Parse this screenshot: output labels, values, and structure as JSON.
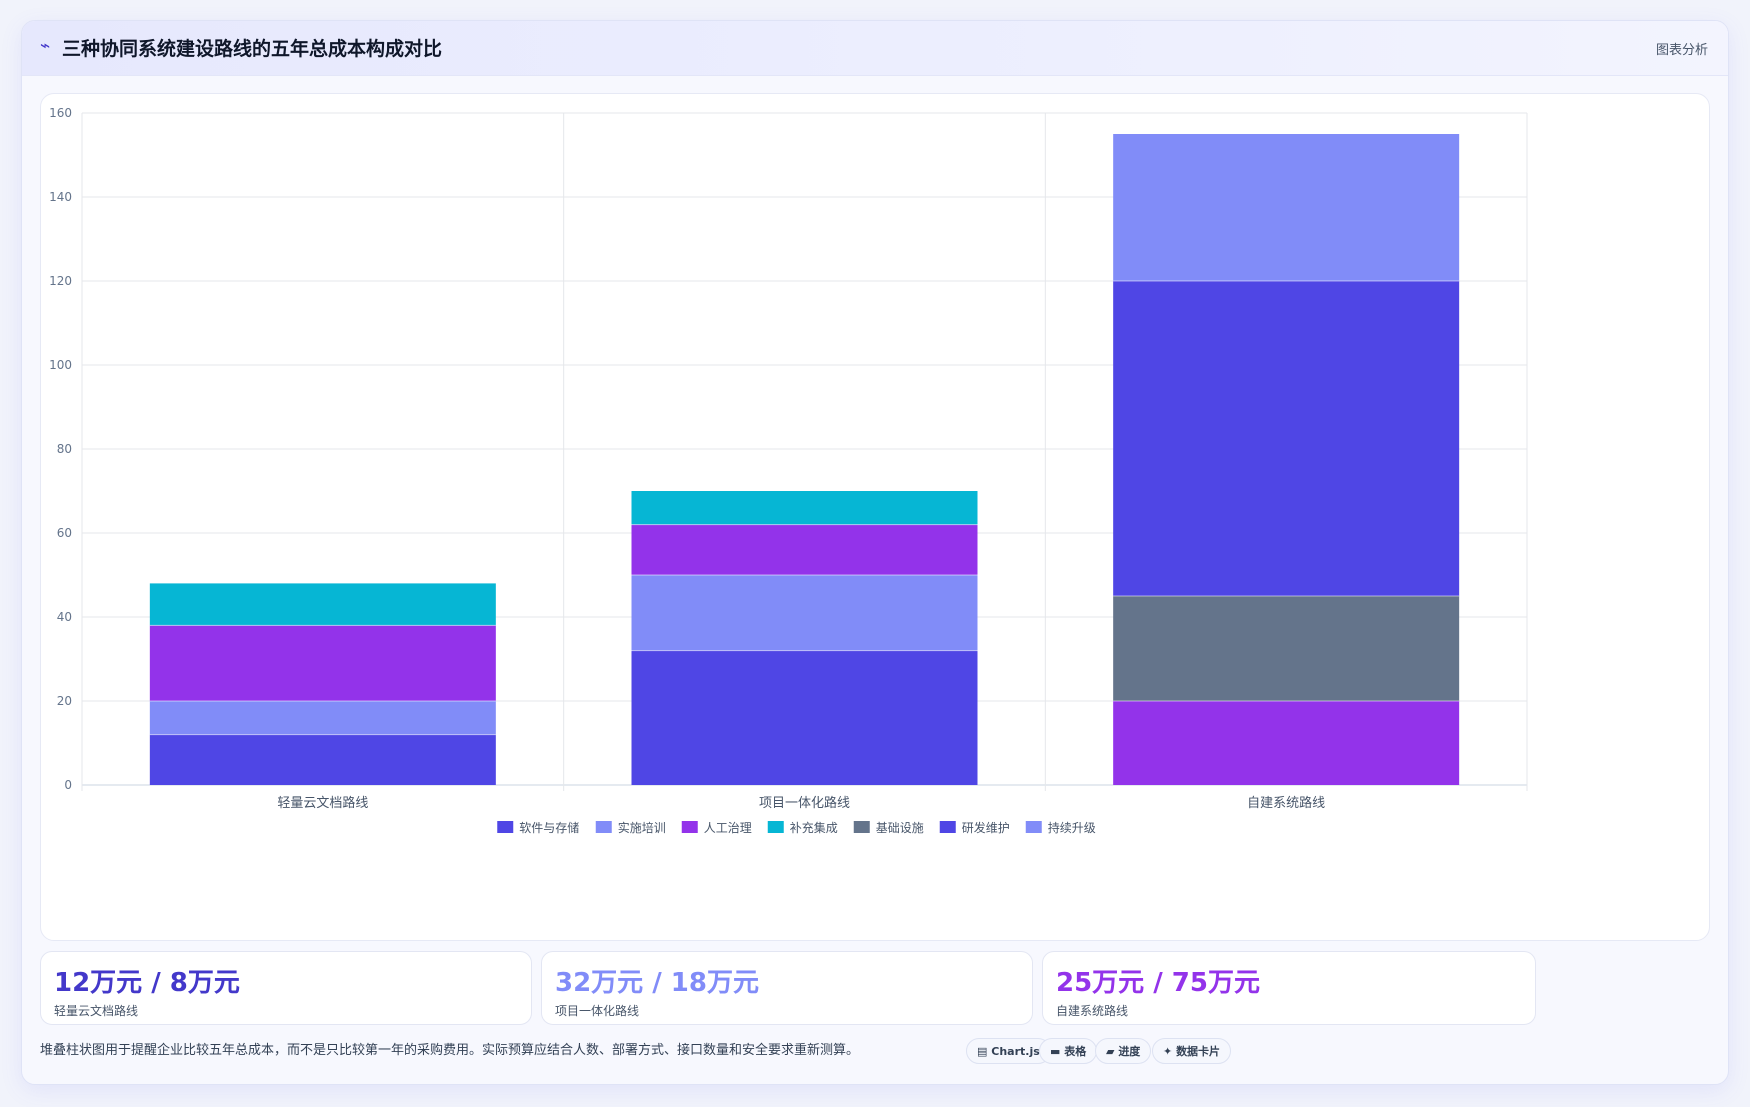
{
  "header": {
    "icon": "chart-line-icon",
    "icon_glyph": "⌁",
    "title": "三种协同系统建设路线的五年总成本构成对比",
    "action_label": "图表分析"
  },
  "chart_data": {
    "type": "bar",
    "stacked": true,
    "categories": [
      "轻量云文档路线",
      "项目一体化路线",
      "自建系统路线"
    ],
    "series": [
      {
        "name": "软件与存储",
        "color": "#4f46e5",
        "values": [
          12,
          32,
          0
        ]
      },
      {
        "name": "实施培训",
        "color": "#818cf8",
        "values": [
          8,
          18,
          0
        ]
      },
      {
        "name": "人工治理",
        "color": "#9333ea",
        "values": [
          18,
          12,
          20
        ]
      },
      {
        "name": "补充集成",
        "color": "#06b6d4",
        "values": [
          10,
          8,
          0
        ]
      },
      {
        "name": "基础设施",
        "color": "#64748b",
        "values": [
          0,
          0,
          25
        ]
      },
      {
        "name": "研发维护",
        "color": "#4f46e5",
        "values": [
          0,
          0,
          75
        ]
      },
      {
        "name": "持续升级",
        "color": "#818cf8",
        "values": [
          0,
          0,
          35
        ]
      }
    ],
    "ylim": [
      0,
      160
    ],
    "yticks": [
      0,
      20,
      40,
      60,
      80,
      100,
      120,
      140,
      160
    ],
    "grid": true,
    "legend": "bottom"
  },
  "stats": [
    {
      "value": "12万元 / 8万元",
      "label": "轻量云文档路线",
      "color": "#4338ca"
    },
    {
      "value": "32万元 / 18万元",
      "label": "项目一体化路线",
      "color": "#818cf8"
    },
    {
      "value": "25万元 / 75万元",
      "label": "自建系统路线",
      "color": "#9333ea"
    }
  ],
  "footnote": "堆叠柱状图用于提醒企业比较五年总成本，而不是只比较第一年的采购费用。实际预算应结合人数、部署方式、接口数量和安全要求重新测算。",
  "tags": [
    {
      "icon": "chart-icon",
      "glyph": "▤",
      "label": "Chart.js"
    },
    {
      "icon": "table-icon",
      "glyph": "▬",
      "label": "表格"
    },
    {
      "icon": "progress-icon",
      "glyph": "▰",
      "label": "进度"
    },
    {
      "icon": "sparkle-icon",
      "glyph": "✦",
      "label": "数据卡片"
    }
  ]
}
